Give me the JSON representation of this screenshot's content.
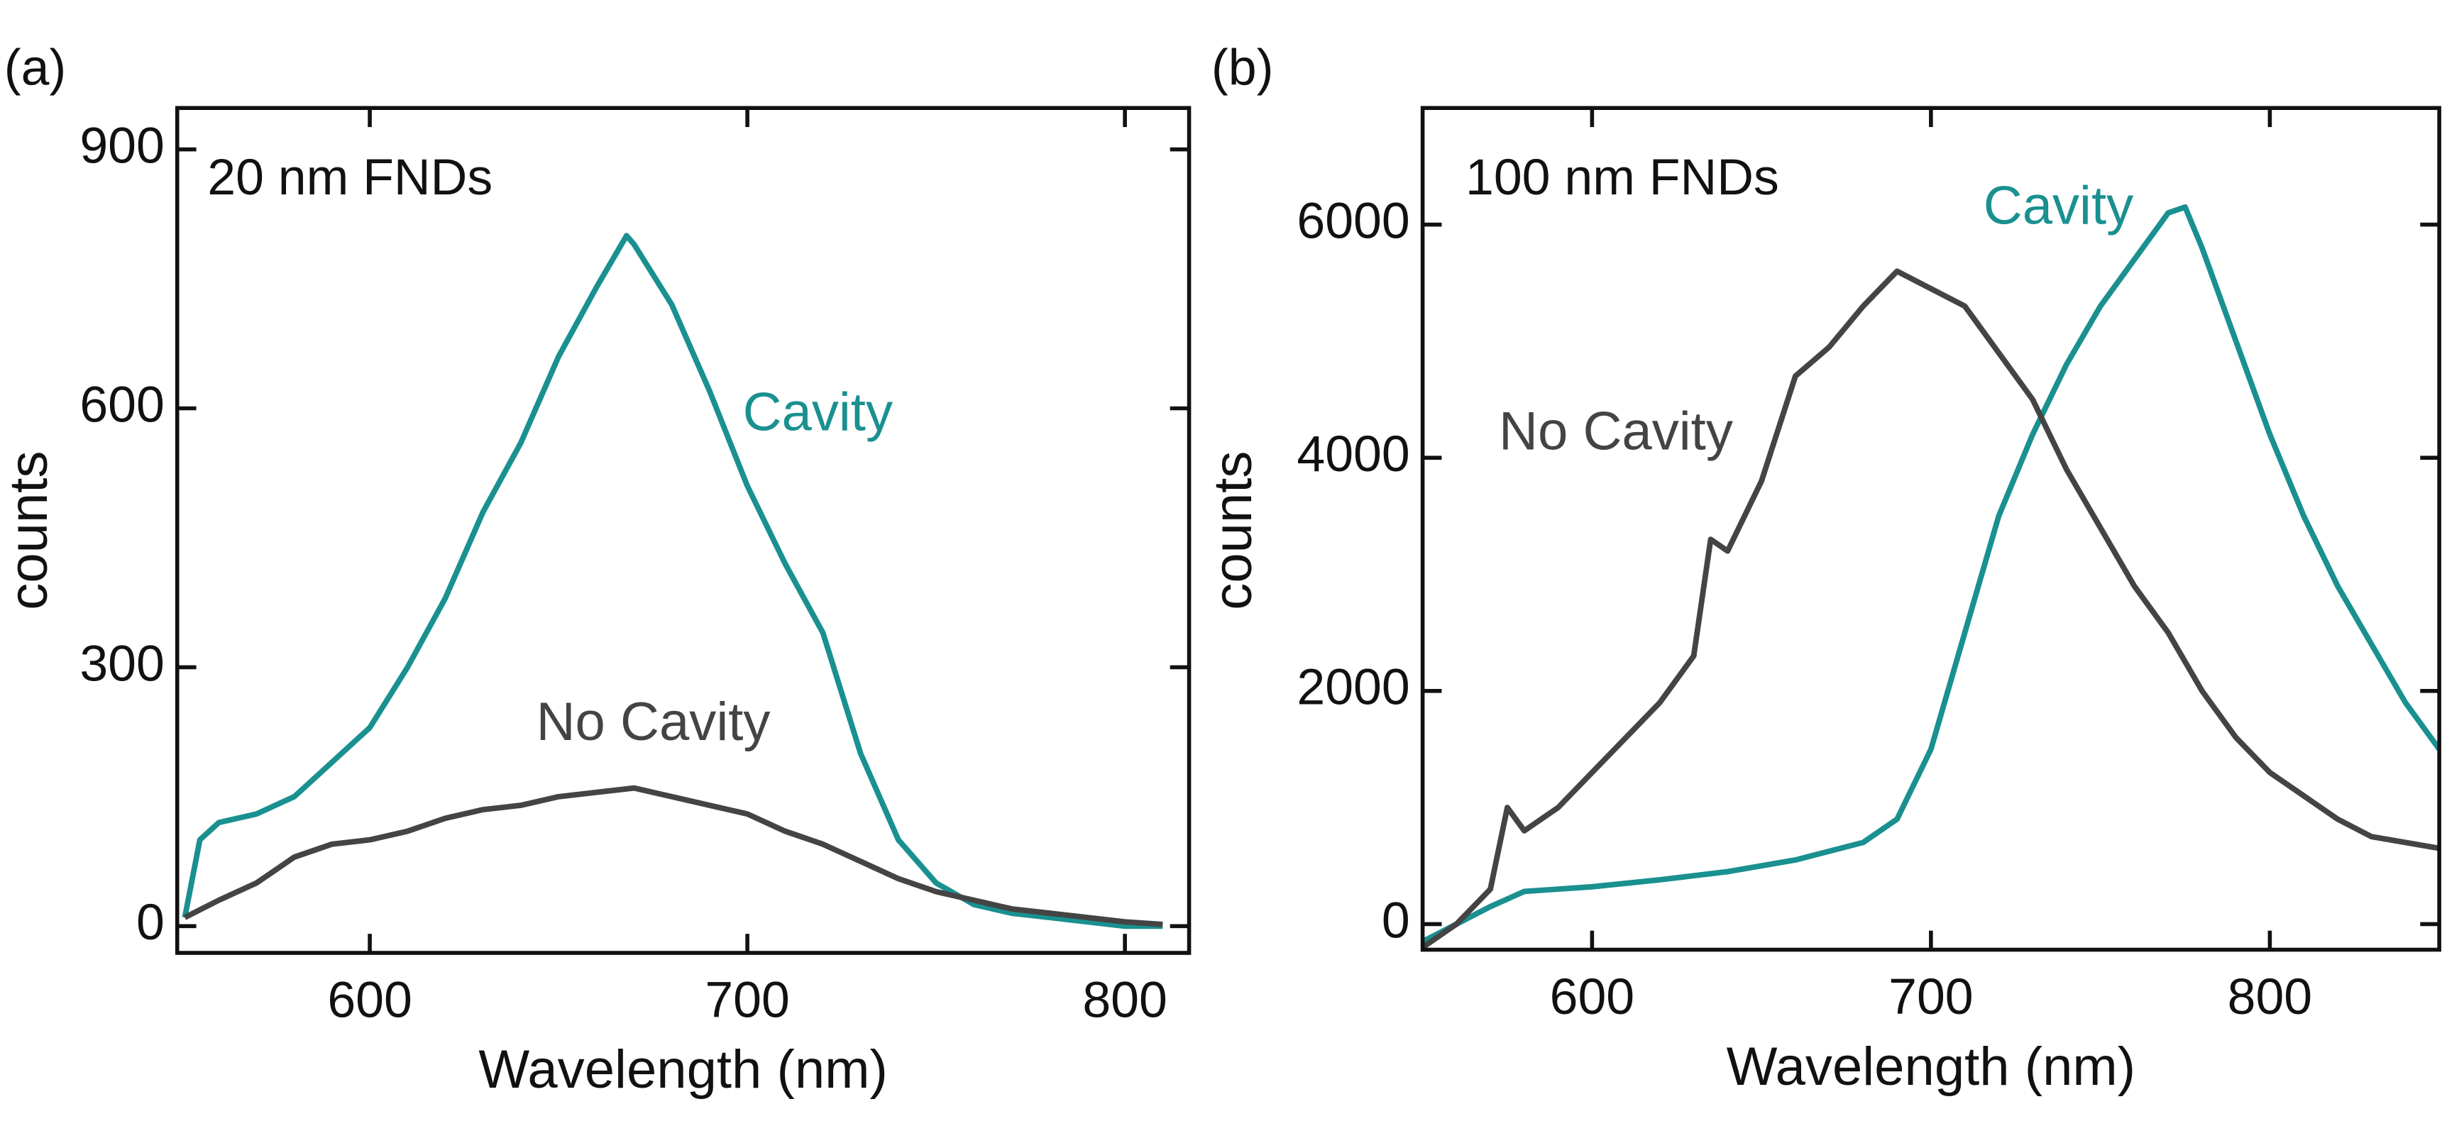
{
  "chart_data": [
    {
      "type": "line",
      "label": "(a)",
      "annotation": "20 nm FNDs",
      "x_label": "Wavelength (nm)",
      "y_label": "counts",
      "xlim": [
        549,
        817
      ],
      "ylim": [
        -31,
        948
      ],
      "xticks": [
        600,
        700,
        800
      ],
      "yticks": [
        0,
        300,
        600,
        900
      ],
      "series": [
        {
          "name": "Cavity",
          "color": "#1a9090",
          "x": [
            551,
            555,
            560,
            570,
            580,
            590,
            600,
            610,
            620,
            630,
            640,
            650,
            660,
            668,
            670,
            680,
            690,
            700,
            710,
            720,
            730,
            740,
            750,
            760,
            770,
            780,
            790,
            800,
            810
          ],
          "values": [
            10,
            100,
            120,
            130,
            150,
            190,
            230,
            300,
            380,
            480,
            560,
            660,
            740,
            800,
            790,
            720,
            620,
            510,
            420,
            340,
            200,
            100,
            50,
            25,
            15,
            10,
            5,
            0,
            0
          ]
        },
        {
          "name": "No Cavity",
          "color": "#444444",
          "x": [
            551,
            560,
            570,
            580,
            590,
            600,
            610,
            620,
            630,
            640,
            650,
            660,
            670,
            680,
            690,
            700,
            710,
            720,
            730,
            740,
            750,
            760,
            770,
            780,
            790,
            800,
            810
          ],
          "values": [
            10,
            30,
            50,
            80,
            95,
            100,
            110,
            125,
            135,
            140,
            150,
            155,
            160,
            150,
            140,
            130,
            110,
            95,
            75,
            55,
            40,
            30,
            20,
            15,
            10,
            5,
            2
          ]
        }
      ]
    },
    {
      "type": "line",
      "label": "(b)",
      "annotation": "100 nm FNDs",
      "x_label": "Wavelength (nm)",
      "y_label": "counts",
      "xlim": [
        550,
        850
      ],
      "ylim": [
        -220,
        7000
      ],
      "xticks": [
        600,
        700,
        800
      ],
      "yticks": [
        0,
        2000,
        4000,
        6000
      ],
      "series": [
        {
          "name": "Cavity",
          "color": "#1a9090",
          "x": [
            550,
            560,
            570,
            580,
            590,
            600,
            620,
            640,
            660,
            680,
            690,
            700,
            710,
            720,
            730,
            740,
            750,
            760,
            770,
            775,
            780,
            790,
            800,
            810,
            820,
            830,
            840,
            850
          ],
          "values": [
            -150,
            0,
            150,
            280,
            300,
            320,
            380,
            450,
            550,
            700,
            900,
            1500,
            2500,
            3500,
            4200,
            4800,
            5300,
            5700,
            6100,
            6150,
            5800,
            5000,
            4200,
            3500,
            2900,
            2400,
            1900,
            1500
          ]
        },
        {
          "name": "No Cavity",
          "color": "#444444",
          "x": [
            550,
            560,
            570,
            575,
            580,
            590,
            600,
            610,
            620,
            630,
            635,
            640,
            650,
            660,
            670,
            680,
            690,
            700,
            710,
            720,
            730,
            740,
            750,
            760,
            770,
            780,
            790,
            800,
            810,
            820,
            830,
            840,
            850
          ],
          "values": [
            -200,
            0,
            300,
            1000,
            800,
            1000,
            1300,
            1600,
            1900,
            2300,
            3300,
            3200,
            3800,
            4700,
            4950,
            5300,
            5600,
            5450,
            5300,
            4900,
            4500,
            3900,
            3400,
            2900,
            2500,
            2000,
            1600,
            1300,
            1100,
            900,
            750,
            700,
            650
          ]
        }
      ]
    }
  ]
}
